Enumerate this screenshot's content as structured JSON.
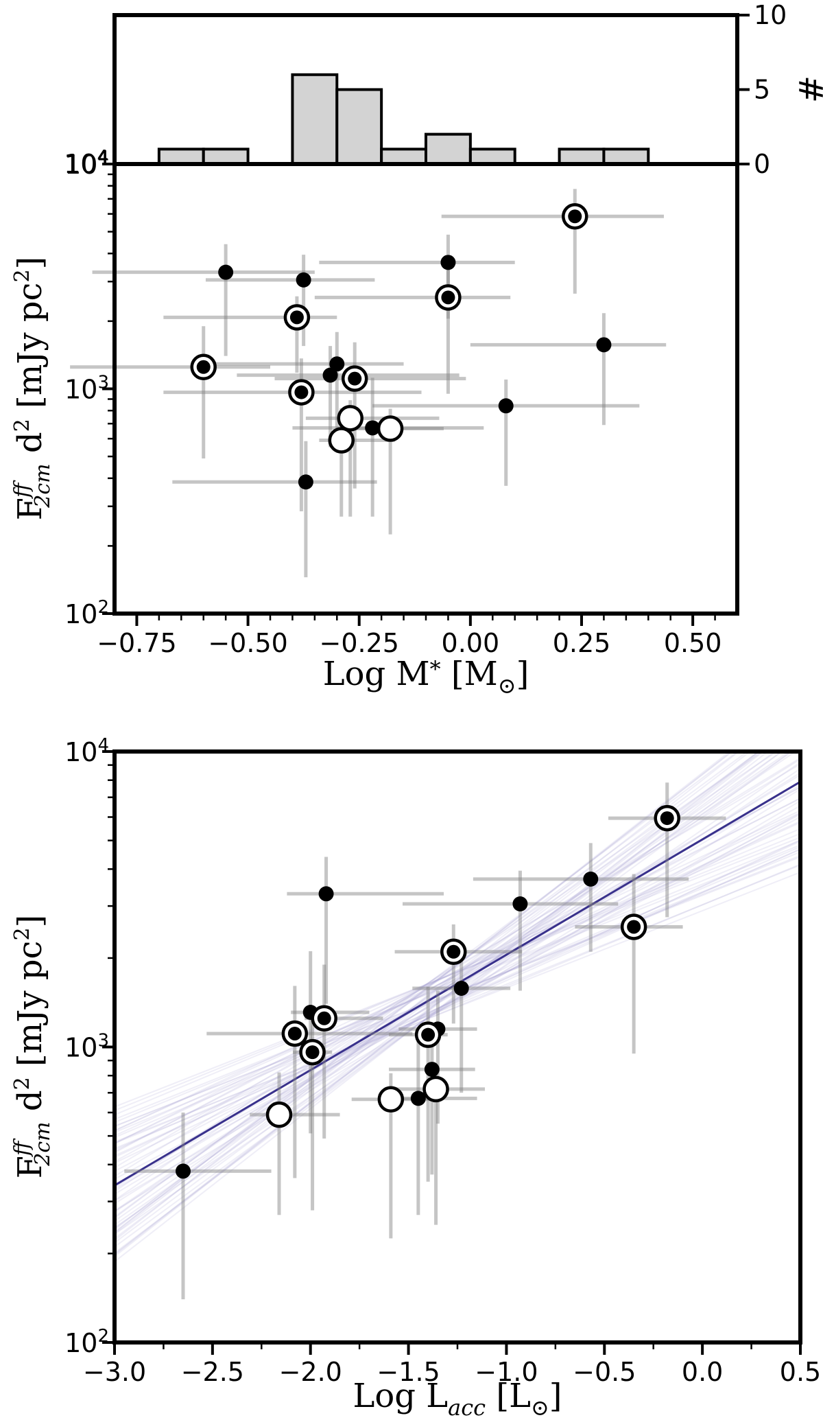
{
  "chart_data": [
    {
      "type": "histogram",
      "panel": "top-marginal",
      "bin_edges": [
        -0.7,
        -0.6,
        -0.5,
        -0.4,
        -0.3,
        -0.2,
        -0.1,
        0.0,
        0.1,
        0.2,
        0.3,
        0.4
      ],
      "counts": [
        1,
        1,
        0,
        6,
        5,
        1,
        2,
        1,
        0,
        1,
        1
      ],
      "xlim": [
        -0.8,
        0.6
      ],
      "ylim": [
        0,
        10
      ],
      "ylabel": "#",
      "yticks": [
        0,
        5,
        10
      ],
      "ytick_labels": [
        "0",
        "5",
        "10"
      ],
      "corner_label_base": "10",
      "corner_label_exp": "4",
      "fill_color": "#d3d3d3"
    },
    {
      "type": "scatter",
      "panel": "mass",
      "yscale": "log",
      "xlim": [
        -0.8,
        0.6
      ],
      "ylim": [
        100,
        10000
      ],
      "xticks": [
        -0.75,
        -0.5,
        -0.25,
        0.0,
        0.25,
        0.5
      ],
      "xtick_labels": [
        "−0.75",
        "−0.50",
        "−0.25",
        "0.00",
        "0.25",
        "0.50"
      ],
      "yticks": [
        100,
        1000,
        10000
      ],
      "ytick_labels": [
        {
          "base": "10",
          "exp": "2"
        },
        {
          "base": "10",
          "exp": "3"
        },
        {
          "base": "10",
          "exp": "4"
        }
      ],
      "xlabel": {
        "text": "Log M",
        "sub": "*",
        "unit_open": " [M",
        "odot": "⊙",
        "unit_close": "]"
      },
      "ylabel": {
        "F": "F",
        "sup": "ff",
        "sub": "2cm",
        "rest": " d",
        "sq": "2",
        "unit": " [mJy pc",
        "unit_sq": "2",
        "close": "]"
      },
      "points": [
        {
          "x": -0.55,
          "y": 3300,
          "xerr": [
            0.3,
            0.2
          ],
          "yerr": [
            1900,
            1100
          ],
          "marker": "solid"
        },
        {
          "x": -0.375,
          "y": 3050,
          "xerr": [
            0.22,
            0.16
          ],
          "yerr": [
            1500,
            900
          ],
          "marker": "solid"
        },
        {
          "x": -0.05,
          "y": 3650,
          "xerr": [
            0.29,
            0.15
          ],
          "yerr": [
            1600,
            1200
          ],
          "marker": "solid"
        },
        {
          "x": 0.3,
          "y": 1570,
          "xerr": [
            0.3,
            0.14
          ],
          "yerr": [
            880,
            600
          ],
          "marker": "solid"
        },
        {
          "x": 0.08,
          "y": 840,
          "xerr": [
            0.3,
            0.3
          ],
          "yerr": [
            470,
            260
          ],
          "marker": "solid"
        },
        {
          "x": -0.3,
          "y": 1290,
          "xerr": [
            0.3,
            0.15
          ],
          "yerr": [
            660,
            500
          ],
          "marker": "solid"
        },
        {
          "x": -0.315,
          "y": 1150,
          "xerr": [
            0.21,
            0.29
          ],
          "yerr": [
            600,
            400
          ],
          "marker": "solid"
        },
        {
          "x": -0.37,
          "y": 385,
          "xerr": [
            0.3,
            0.16
          ],
          "yerr": [
            240,
            200
          ],
          "marker": "solid"
        },
        {
          "x": -0.22,
          "y": 670,
          "xerr": [
            0.18,
            0.25
          ],
          "yerr": [
            400,
            450
          ],
          "marker": "solid"
        },
        {
          "x": 0.235,
          "y": 5850,
          "xerr": [
            0.3,
            0.2
          ],
          "yerr": [
            3200,
            1900
          ],
          "marker": "dot"
        },
        {
          "x": -0.05,
          "y": 2550,
          "xerr": [
            0.3,
            0.14
          ],
          "yerr": [
            1600,
            1300
          ],
          "marker": "dot"
        },
        {
          "x": -0.39,
          "y": 2080,
          "xerr": [
            0.3,
            0.09
          ],
          "yerr": [
            900,
            500
          ],
          "marker": "dot"
        },
        {
          "x": -0.6,
          "y": 1250,
          "xerr": [
            0.3,
            0.15
          ],
          "yerr": [
            760,
            650
          ],
          "marker": "dot"
        },
        {
          "x": -0.26,
          "y": 1110,
          "xerr": [
            0.18,
            0.25
          ],
          "yerr": [
            750,
            500
          ],
          "marker": "dot"
        },
        {
          "x": -0.38,
          "y": 965,
          "xerr": [
            0.31,
            0.27
          ],
          "yerr": [
            680,
            400
          ],
          "marker": "dot"
        },
        {
          "x": -0.27,
          "y": 740,
          "xerr": [
            0.1,
            0.2
          ],
          "yerr": [
            470,
            150
          ],
          "marker": "open"
        },
        {
          "x": -0.29,
          "y": 590,
          "xerr": [
            0.05,
            0.12
          ],
          "yerr": [
            320,
            230
          ],
          "marker": "open"
        },
        {
          "x": -0.18,
          "y": 665,
          "xerr": [
            0.1,
            0.12
          ],
          "yerr": [
            440,
            150
          ],
          "marker": "open"
        }
      ]
    },
    {
      "type": "scatter",
      "panel": "accretion",
      "yscale": "log",
      "xlim": [
        -3.0,
        0.5
      ],
      "ylim": [
        100,
        10000
      ],
      "xticks": [
        -3.0,
        -2.5,
        -2.0,
        -1.5,
        -1.0,
        -0.5,
        0.0,
        0.5
      ],
      "xtick_labels": [
        "−3.0",
        "−2.5",
        "−2.0",
        "−1.5",
        "−1.0",
        "−0.5",
        "0.0",
        "0.5"
      ],
      "yticks": [
        100,
        1000,
        10000
      ],
      "ytick_labels": [
        {
          "base": "10",
          "exp": "2"
        },
        {
          "base": "10",
          "exp": "3"
        },
        {
          "base": "10",
          "exp": "4"
        }
      ],
      "xlabel": {
        "text": "Log L",
        "sub": "acc",
        "unit_open": " [L",
        "odot": "⊙",
        "unit_close": "]"
      },
      "ylabel": {
        "F": "F",
        "sup": "ff",
        "sub": "2cm",
        "rest": " d",
        "sq": "2",
        "unit": " [mJy pc",
        "unit_sq": "2",
        "close": "]"
      },
      "fit": {
        "x": [
          -3.0,
          0.5
        ],
        "y": [
          340,
          7900
        ],
        "color": "#39318c"
      },
      "fit_samples_count": 60,
      "points": [
        {
          "x": -2.65,
          "y": 380,
          "xerr": [
            0.3,
            0.45
          ],
          "yerr": [
            240,
            220
          ],
          "marker": "solid"
        },
        {
          "x": -1.92,
          "y": 3300,
          "xerr": [
            0.2,
            0.6
          ],
          "yerr": [
            1900,
            1100
          ],
          "marker": "solid"
        },
        {
          "x": -2.0,
          "y": 1310,
          "xerr": [
            0.1,
            0.3
          ],
          "yerr": [
            800,
            800
          ],
          "marker": "solid"
        },
        {
          "x": -0.93,
          "y": 3050,
          "xerr": [
            0.6,
            0.5
          ],
          "yerr": [
            1500,
            900
          ],
          "marker": "solid"
        },
        {
          "x": -0.57,
          "y": 3700,
          "xerr": [
            0.6,
            0.5
          ],
          "yerr": [
            1600,
            1200
          ],
          "marker": "solid"
        },
        {
          "x": -1.23,
          "y": 1580,
          "xerr": [
            0.25,
            0.25
          ],
          "yerr": [
            880,
            600
          ],
          "marker": "solid"
        },
        {
          "x": -1.35,
          "y": 1150,
          "xerr": [
            0.2,
            0.2
          ],
          "yerr": [
            600,
            400
          ],
          "marker": "solid"
        },
        {
          "x": -1.38,
          "y": 840,
          "xerr": [
            0.22,
            0.22
          ],
          "yerr": [
            470,
            260
          ],
          "marker": "solid"
        },
        {
          "x": -1.45,
          "y": 670,
          "xerr": [
            0.1,
            0.3
          ],
          "yerr": [
            400,
            450
          ],
          "marker": "solid"
        },
        {
          "x": -0.18,
          "y": 5950,
          "xerr": [
            0.3,
            0.3
          ],
          "yerr": [
            3200,
            1900
          ],
          "marker": "dot"
        },
        {
          "x": -0.35,
          "y": 2550,
          "xerr": [
            0.3,
            0.25
          ],
          "yerr": [
            1600,
            1300
          ],
          "marker": "dot"
        },
        {
          "x": -1.27,
          "y": 2100,
          "xerr": [
            0.3,
            0.35
          ],
          "yerr": [
            900,
            500
          ],
          "marker": "dot"
        },
        {
          "x": -1.93,
          "y": 1250,
          "xerr": [
            0.1,
            0.3
          ],
          "yerr": [
            760,
            650
          ],
          "marker": "dot"
        },
        {
          "x": -2.08,
          "y": 1110,
          "xerr": [
            0.45,
            0.6
          ],
          "yerr": [
            750,
            500
          ],
          "marker": "dot"
        },
        {
          "x": -1.4,
          "y": 1100,
          "xerr": [
            0.2,
            0.1
          ],
          "yerr": [
            750,
            500
          ],
          "marker": "dot"
        },
        {
          "x": -1.99,
          "y": 960,
          "xerr": [
            0.1,
            0.1
          ],
          "yerr": [
            680,
            400
          ],
          "marker": "dot"
        },
        {
          "x": -2.16,
          "y": 590,
          "xerr": [
            0.15,
            0.31
          ],
          "yerr": [
            320,
            230
          ],
          "marker": "open"
        },
        {
          "x": -1.59,
          "y": 665,
          "xerr": [
            0.2,
            0.2
          ],
          "yerr": [
            440,
            150
          ],
          "marker": "open"
        },
        {
          "x": -1.36,
          "y": 720,
          "xerr": [
            0.25,
            0.25
          ],
          "yerr": [
            470,
            150
          ],
          "marker": "open"
        }
      ]
    }
  ]
}
